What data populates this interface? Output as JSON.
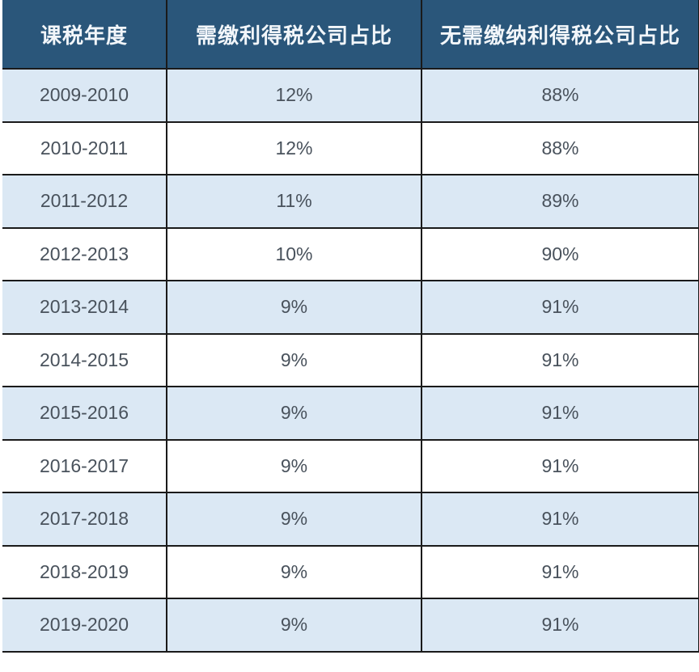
{
  "table": {
    "columns": [
      {
        "label": "课税年度"
      },
      {
        "label": "需缴利得税公司占比"
      },
      {
        "label": "无需缴纳利得税公司占比"
      }
    ],
    "rows": [
      {
        "year": "2009-2010",
        "taxable": "12%",
        "non_taxable": "88%"
      },
      {
        "year": "2010-2011",
        "taxable": "12%",
        "non_taxable": "88%"
      },
      {
        "year": "2011-2012",
        "taxable": "11%",
        "non_taxable": "89%"
      },
      {
        "year": "2012-2013",
        "taxable": "10%",
        "non_taxable": "90%"
      },
      {
        "year": "2013-2014",
        "taxable": "9%",
        "non_taxable": "91%"
      },
      {
        "year": "2014-2015",
        "taxable": "9%",
        "non_taxable": "91%"
      },
      {
        "year": "2015-2016",
        "taxable": "9%",
        "non_taxable": "91%"
      },
      {
        "year": "2016-2017",
        "taxable": "9%",
        "non_taxable": "91%"
      },
      {
        "year": "2017-2018",
        "taxable": "9%",
        "non_taxable": "91%"
      },
      {
        "year": "2018-2019",
        "taxable": "9%",
        "non_taxable": "91%"
      },
      {
        "year": "2019-2020",
        "taxable": "9%",
        "non_taxable": "91%"
      }
    ]
  },
  "colors": {
    "header_bg": "#2A567A",
    "header_text": "#F2F6FA",
    "row_alt_bg": "#DBE8F4",
    "row_bg": "#FFFFFF",
    "border": "#1A1A1A",
    "cell_text": "#49525C"
  },
  "chart_data": {
    "type": "table",
    "title": "",
    "columns": [
      "课税年度",
      "需缴利得税公司占比",
      "无需缴纳利得税公司占比"
    ],
    "categories": [
      "2009-2010",
      "2010-2011",
      "2011-2012",
      "2012-2013",
      "2013-2014",
      "2014-2015",
      "2015-2016",
      "2016-2017",
      "2017-2018",
      "2018-2019",
      "2019-2020"
    ],
    "series": [
      {
        "name": "需缴利得税公司占比",
        "unit": "%",
        "values": [
          12,
          12,
          11,
          10,
          9,
          9,
          9,
          9,
          9,
          9,
          9
        ]
      },
      {
        "name": "无需缴纳利得税公司占比",
        "unit": "%",
        "values": [
          88,
          88,
          89,
          90,
          91,
          91,
          91,
          91,
          91,
          91,
          91
        ]
      }
    ]
  }
}
